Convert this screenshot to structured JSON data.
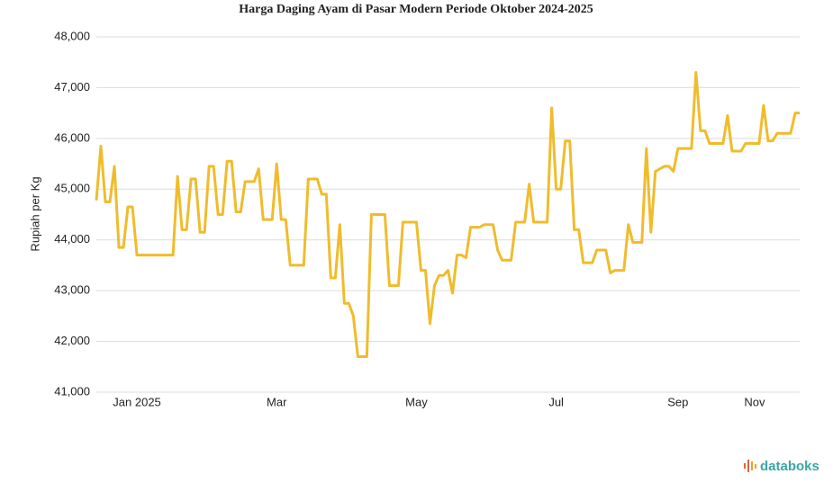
{
  "chart_data": {
    "type": "line",
    "title": "Harga Daging Ayam di Pasar Modern Periode Oktober 2024-2025",
    "y_label": "Rupiah per Kg",
    "source_logo": "databoks",
    "color": "#f0bc2c",
    "grid": true,
    "categories": [
      null,
      null,
      null,
      null,
      null,
      null,
      null,
      null,
      null,
      "Jan 2025",
      null,
      null,
      null,
      null,
      null,
      null,
      null,
      null,
      null,
      null,
      null,
      null,
      null,
      null,
      null,
      null,
      null,
      null,
      null,
      null,
      null,
      null,
      null,
      null,
      null,
      null,
      null,
      null,
      null,
      null,
      "Mar",
      null,
      null,
      null,
      null,
      null,
      null,
      null,
      null,
      null,
      null,
      null,
      null,
      null,
      null,
      null,
      null,
      null,
      null,
      null,
      null,
      null,
      null,
      null,
      null,
      null,
      null,
      null,
      null,
      null,
      null,
      "May",
      null,
      null,
      null,
      null,
      null,
      null,
      null,
      null,
      null,
      null,
      null,
      null,
      null,
      null,
      null,
      null,
      null,
      null,
      null,
      null,
      null,
      null,
      null,
      null,
      null,
      null,
      null,
      null,
      null,
      null,
      "Jul",
      null,
      null,
      null,
      null,
      null,
      null,
      null,
      null,
      null,
      null,
      null,
      null,
      null,
      null,
      null,
      null,
      null,
      null,
      null,
      null,
      null,
      null,
      null,
      null,
      null,
      null,
      "Sep",
      null,
      null,
      null,
      null,
      null,
      null,
      null,
      null,
      null,
      null,
      null,
      null,
      null,
      null,
      null,
      null,
      "Nov",
      null,
      null,
      null,
      null,
      null,
      null,
      null,
      null,
      null,
      null
    ],
    "values": [
      44780,
      45850,
      44750,
      44750,
      45450,
      43850,
      43850,
      44650,
      44650,
      43700,
      43700,
      43700,
      43700,
      43700,
      43700,
      43700,
      43700,
      43700,
      45250,
      44200,
      44200,
      45200,
      45200,
      44150,
      44150,
      45450,
      45450,
      44500,
      44500,
      45550,
      45550,
      44550,
      44550,
      45150,
      45150,
      45150,
      45400,
      44400,
      44400,
      44400,
      45500,
      44400,
      44400,
      43500,
      43500,
      43500,
      43500,
      45200,
      45200,
      45200,
      44900,
      44900,
      43250,
      43250,
      44300,
      42750,
      42750,
      42500,
      41700,
      41700,
      41700,
      44500,
      44500,
      44500,
      44500,
      43100,
      43100,
      43100,
      44350,
      44350,
      44350,
      44350,
      43400,
      43400,
      42350,
      43100,
      43300,
      43300,
      43400,
      42950,
      43700,
      43700,
      43650,
      44250,
      44250,
      44250,
      44300,
      44300,
      44300,
      43800,
      43600,
      43600,
      43600,
      44350,
      44350,
      44350,
      45100,
      44350,
      44350,
      44350,
      44350,
      46600,
      45000,
      45000,
      45950,
      45950,
      44200,
      44200,
      43550,
      43550,
      43550,
      43800,
      43800,
      43800,
      43350,
      43400,
      43400,
      43400,
      44300,
      43950,
      43950,
      43950,
      45800,
      44150,
      45350,
      45400,
      45450,
      45450,
      45350,
      45800,
      45800,
      45800,
      45800,
      47300,
      46150,
      46150,
      45900,
      45900,
      45900,
      45900,
      46450,
      45750,
      45750,
      45750,
      45900,
      45900,
      45900,
      45900,
      46650,
      45950,
      45950,
      46100,
      46100,
      46100,
      46100,
      46500,
      46500
    ],
    "ylim": [
      41000,
      48000
    ],
    "yticks": [
      {
        "value": 41000,
        "label": "41,000"
      },
      {
        "value": 42000,
        "label": "42,000"
      },
      {
        "value": 43000,
        "label": "43,000"
      },
      {
        "value": 44000,
        "label": "44,000"
      },
      {
        "value": 45000,
        "label": "45,000"
      },
      {
        "value": 46000,
        "label": "46,000"
      },
      {
        "value": 47000,
        "label": "47,000"
      },
      {
        "value": 48000,
        "label": "48,000"
      }
    ]
  }
}
